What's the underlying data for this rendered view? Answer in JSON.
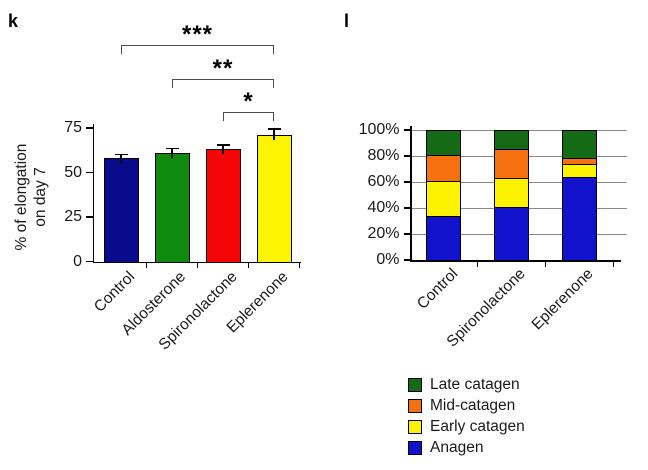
{
  "figure": {
    "background": "#ffffff",
    "axis_color": "#000000",
    "grid_color": "#8a8a8a",
    "bracket_color": "#4d4d4d"
  },
  "chart_data": [
    {
      "type": "bar",
      "panel_label": "k",
      "title": "",
      "ylabel": "% of elongation on day 7",
      "ylabel_lines": [
        "% of elongation",
        "on day 7"
      ],
      "categories": [
        "Control",
        "Aldosterone",
        "Spironolactone",
        "Eplerenone"
      ],
      "values": [
        58,
        61,
        63,
        71
      ],
      "errors_plus": [
        2,
        2.5,
        2.5,
        3.5
      ],
      "bar_colors": [
        "#0a0a8c",
        "#0e8a0e",
        "#f50505",
        "#fdf500"
      ],
      "ylim": [
        0,
        75
      ],
      "yticks": [
        {
          "value": 0,
          "label": "0"
        },
        {
          "value": 25,
          "label": "25"
        },
        {
          "value": 50,
          "label": "50"
        },
        {
          "value": 75,
          "label": "75"
        }
      ],
      "grid": false,
      "significance_brackets": [
        {
          "from": "Control",
          "to": "Eplerenone",
          "label": "***"
        },
        {
          "from": "Aldosterone",
          "to": "Eplerenone",
          "label": "**"
        },
        {
          "from": "Spironolactone",
          "to": "Eplerenone",
          "label": "*"
        }
      ]
    },
    {
      "type": "stacked-bar",
      "panel_label": "l",
      "title": "",
      "categories": [
        "Control",
        "Spironolactone",
        "Eplerenone"
      ],
      "series": [
        {
          "name": "Anagen",
          "color": "#1212cc",
          "values": [
            34,
            41,
            64
          ]
        },
        {
          "name": "Early catagen",
          "color": "#fdf200",
          "values": [
            27,
            22,
            10
          ]
        },
        {
          "name": "Mid-catagen",
          "color": "#f5700e",
          "values": [
            20,
            23,
            5
          ]
        },
        {
          "name": "Late catagen",
          "color": "#156b15",
          "values": [
            19,
            14,
            21
          ]
        }
      ],
      "ylim": [
        0,
        100
      ],
      "yticks": [
        {
          "value": 0,
          "label": "0%"
        },
        {
          "value": 20,
          "label": "20%"
        },
        {
          "value": 40,
          "label": "40%"
        },
        {
          "value": 60,
          "label": "60%"
        },
        {
          "value": 80,
          "label": "80%"
        },
        {
          "value": 100,
          "label": "100%"
        }
      ],
      "grid": true,
      "legend": {
        "position": "bottom-right",
        "order": [
          "Late catagen",
          "Mid-catagen",
          "Early catagen",
          "Anagen"
        ]
      }
    }
  ]
}
